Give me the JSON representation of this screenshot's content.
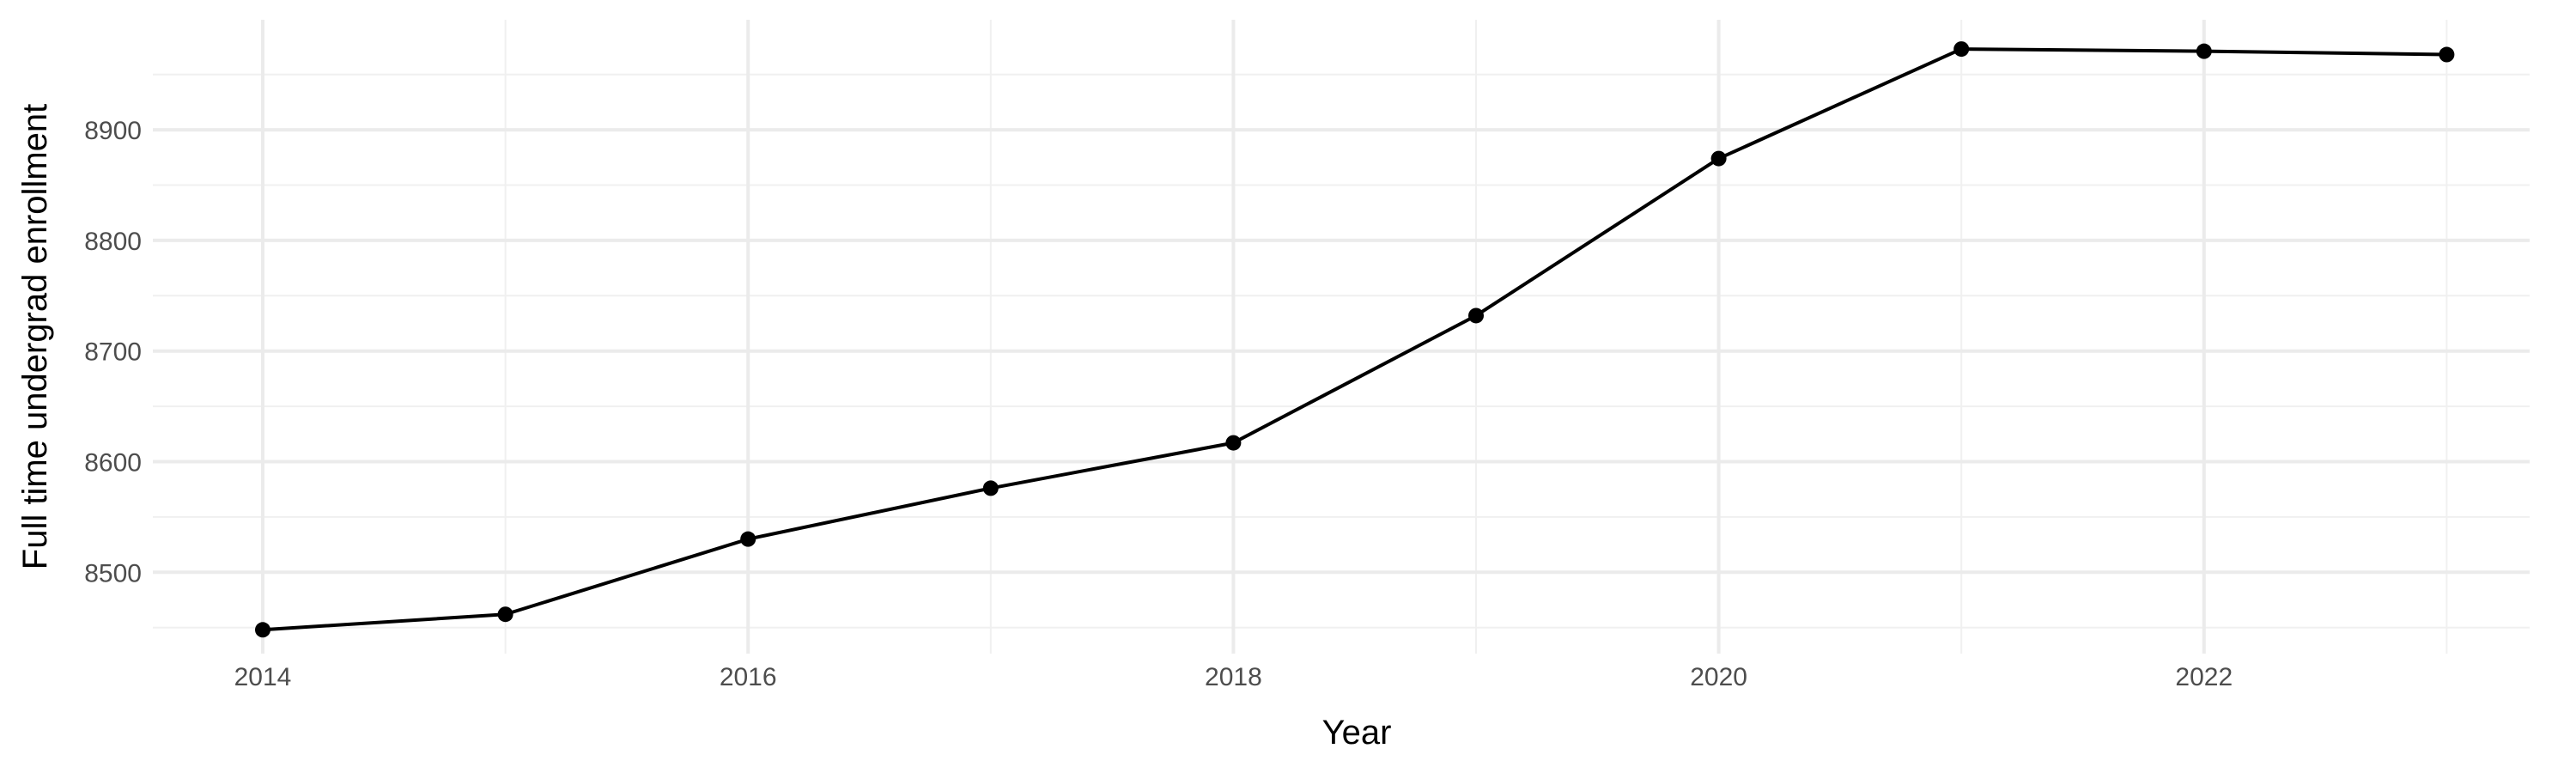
{
  "chart_data": {
    "type": "line",
    "title": "",
    "xlabel": "Year",
    "ylabel": "Full time undergrad enrollment",
    "x": [
      2014,
      2015,
      2016,
      2017,
      2018,
      2019,
      2020,
      2021,
      2022,
      2023
    ],
    "series": [
      {
        "values": [
          8448,
          8462,
          8530,
          8576,
          8617,
          8732,
          8874,
          8973,
          8971,
          8968
        ],
        "color": "#000000",
        "markers": true
      }
    ],
    "xlim": [
      2013.55,
      2023.45
    ],
    "ylim": [
      8425,
      8990
    ],
    "x_ticks": [
      "2014",
      "2016",
      "2018",
      "2020",
      "2022"
    ],
    "y_ticks": [
      "8500",
      "8600",
      "8700",
      "8800",
      "8900"
    ],
    "grid": true,
    "legend": "none"
  }
}
